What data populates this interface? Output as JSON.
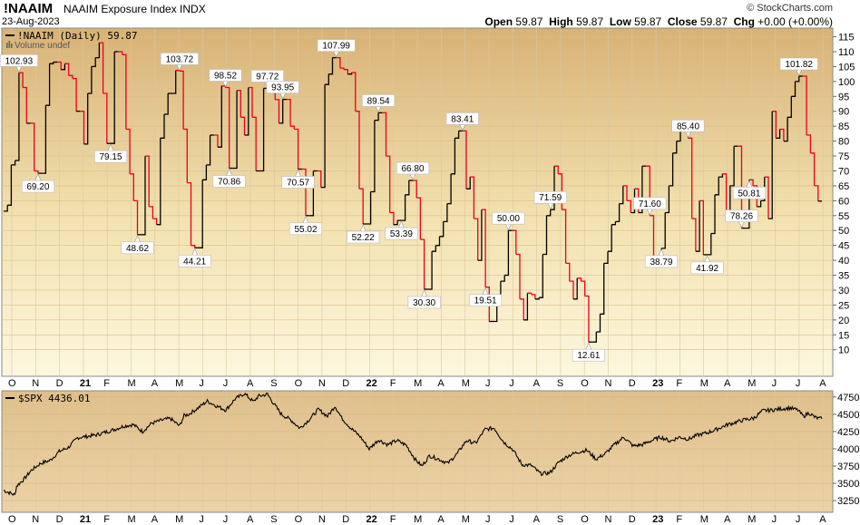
{
  "header": {
    "symbol": "!NAAIM",
    "description": "NAAIM Exposure Index  INDX",
    "date": "23-Aug-2023",
    "copyright": "© StockCharts.com",
    "open_label": "Open",
    "open": "59.87",
    "high_label": "High",
    "high": "59.87",
    "low_label": "Low",
    "low": "59.87",
    "close_label": "Close",
    "close": "59.87",
    "chg_label": "Chg",
    "chg": "+0.00 (+0.00%)"
  },
  "colors": {
    "up": "#000000",
    "down": "#e8001c",
    "bg_top": "#d9b478",
    "bg_bottom": "#fcf6dc"
  },
  "chart_data": [
    {
      "type": "line",
      "legend": "!NAAIM (Daily) 59.87",
      "volume_label": "Volume undef",
      "ylim": [
        2,
        117
      ],
      "yticks": [
        10,
        15,
        20,
        25,
        30,
        35,
        40,
        45,
        50,
        55,
        60,
        65,
        70,
        75,
        80,
        85,
        90,
        95,
        100,
        105,
        110,
        115
      ],
      "x_labels": [
        "O",
        "N",
        "D",
        "21",
        "F",
        "M",
        "A",
        "M",
        "J",
        "J",
        "A",
        "S",
        "O",
        "N",
        "D",
        "22",
        "F",
        "M",
        "A",
        "M",
        "J",
        "J",
        "A",
        "S",
        "O",
        "N",
        "D",
        "23",
        "F",
        "M",
        "A",
        "M",
        "J",
        "J",
        "A"
      ],
      "values": [
        56.5,
        58.5,
        72.0,
        73.5,
        102.9,
        98.0,
        86.0,
        86.0,
        70.0,
        69.2,
        69.2,
        92.0,
        106.0,
        106.5,
        106.5,
        104.0,
        106.0,
        102.0,
        101.0,
        90.0,
        90.0,
        79.0,
        96.0,
        105.0,
        108.0,
        113.0,
        96.0,
        79.2,
        79.2,
        110.0,
        110.0,
        109.0,
        84.0,
        69.0,
        60.0,
        48.6,
        48.6,
        75.0,
        58.0,
        54.0,
        52.0,
        81.0,
        89.0,
        96.0,
        96.0,
        103.7,
        103.5,
        84.0,
        66.0,
        45.0,
        44.2,
        44.2,
        67.0,
        72.0,
        82.0,
        82.0,
        78.0,
        98.5,
        98.0,
        70.9,
        70.9,
        97.0,
        88.0,
        82.0,
        98.0,
        88.0,
        70.0,
        70.0,
        97.7,
        97.7,
        97.0,
        93.9,
        86.0,
        94.0,
        94.0,
        85.0,
        84.0,
        70.6,
        70.6,
        55.0,
        55.0,
        70.0,
        70.0,
        64.5,
        99.0,
        102.5,
        108.0,
        108.0,
        104.5,
        104.0,
        102.5,
        103.0,
        90.0,
        64.0,
        52.2,
        52.2,
        63.0,
        87.0,
        89.5,
        89.5,
        75.0,
        56.0,
        52.0,
        53.4,
        53.4,
        62.0,
        66.8,
        66.8,
        61.0,
        47.0,
        30.3,
        30.3,
        43.0,
        45.0,
        48.0,
        53.0,
        59.0,
        69.0,
        81.0,
        83.4,
        83.4,
        64.0,
        68.0,
        54.0,
        40.0,
        57.0,
        31.0,
        19.5,
        19.5,
        27.0,
        33.0,
        35.0,
        50.0,
        50.0,
        42.0,
        27.0,
        20.0,
        29.0,
        28.5,
        27.0,
        27.5,
        42.0,
        55.0,
        57.0,
        71.6,
        69.0,
        57.0,
        39.0,
        33.0,
        27.0,
        34.0,
        33.0,
        28.0,
        12.6,
        12.6,
        16.0,
        22.0,
        39.0,
        43.0,
        52.0,
        53.0,
        59.0,
        65.0,
        60.0,
        56.0,
        64.0,
        56.0,
        71.6,
        71.6,
        55.0,
        38.8,
        38.8,
        44.0,
        56.0,
        65.0,
        76.0,
        80.0,
        85.4,
        85.4,
        81.0,
        54.0,
        43.0,
        60.0,
        41.9,
        41.9,
        49.0,
        62.0,
        68.0,
        69.0,
        55.0,
        65.0,
        78.3,
        78.3,
        50.8,
        50.8,
        67.0,
        65.0,
        58.0,
        60.0,
        68.0,
        54.0,
        90.0,
        81.0,
        84.0,
        80.0,
        88.0,
        95.0,
        100.0,
        101.8,
        101.8,
        82.0,
        76.0,
        65.0,
        59.87,
        59.87
      ],
      "annotations": [
        {
          "i": 4,
          "label": "102.93",
          "pos": "above"
        },
        {
          "i": 9,
          "label": "69.20",
          "pos": "below"
        },
        {
          "i": 26,
          "label": "",
          "pos": "above"
        },
        {
          "i": 28,
          "label": "79.15",
          "pos": "below"
        },
        {
          "i": 35,
          "label": "48.62",
          "pos": "below"
        },
        {
          "i": 46,
          "label": "103.72",
          "pos": "above"
        },
        {
          "i": 50,
          "label": "44.21",
          "pos": "below"
        },
        {
          "i": 58,
          "label": "98.52",
          "pos": "above"
        },
        {
          "i": 59,
          "label": "70.86",
          "pos": "below"
        },
        {
          "i": 69,
          "label": "97.72",
          "pos": "above"
        },
        {
          "i": 73,
          "label": "93.95",
          "pos": "above"
        },
        {
          "i": 77,
          "label": "70.57",
          "pos": "below"
        },
        {
          "i": 79,
          "label": "55.02",
          "pos": "below"
        },
        {
          "i": 87,
          "label": "107.99",
          "pos": "above"
        },
        {
          "i": 94,
          "label": "52.22",
          "pos": "below"
        },
        {
          "i": 98,
          "label": "89.54",
          "pos": "above"
        },
        {
          "i": 104,
          "label": "53.39",
          "pos": "below"
        },
        {
          "i": 107,
          "label": "66.80",
          "pos": "above"
        },
        {
          "i": 110,
          "label": "30.30",
          "pos": "below"
        },
        {
          "i": 120,
          "label": "83.41",
          "pos": "above"
        },
        {
          "i": 126,
          "label": "19.51",
          "pos": "below"
        },
        {
          "i": 132,
          "label": "50.00",
          "pos": "above"
        },
        {
          "i": 143,
          "label": "71.59",
          "pos": "above"
        },
        {
          "i": 153,
          "label": "12.61",
          "pos": "below"
        },
        {
          "i": 169,
          "label": "71.60",
          "pos": "above"
        },
        {
          "i": 172,
          "label": "38.79",
          "pos": "below"
        },
        {
          "i": 179,
          "label": "85.40",
          "pos": "above"
        },
        {
          "i": 184,
          "label": "41.92",
          "pos": "below"
        },
        {
          "i": 193,
          "label": "78.26",
          "pos": "above"
        },
        {
          "i": 195,
          "label": "50.81",
          "pos": "below"
        },
        {
          "i": 208,
          "label": "101.82",
          "pos": "above"
        }
      ]
    },
    {
      "type": "line",
      "legend": "$SPX 4436.01",
      "ylim": [
        3120,
        4800
      ],
      "yticks": [
        3250,
        3500,
        3750,
        4000,
        4250,
        4500,
        4750
      ],
      "x_labels": [
        "O",
        "N",
        "D",
        "21",
        "F",
        "M",
        "A",
        "M",
        "J",
        "J",
        "A",
        "S",
        "O",
        "N",
        "D",
        "22",
        "F",
        "M",
        "A",
        "M",
        "J",
        "J",
        "A",
        "S",
        "O",
        "N",
        "D",
        "23",
        "F",
        "M",
        "A",
        "M",
        "J",
        "J",
        "A"
      ],
      "anchors": [
        [
          0,
          3400
        ],
        [
          12,
          3330
        ],
        [
          14,
          3460
        ],
        [
          22,
          3560
        ],
        [
          30,
          3690
        ],
        [
          40,
          3790
        ],
        [
          50,
          3830
        ],
        [
          60,
          3960
        ],
        [
          70,
          4020
        ],
        [
          80,
          4160
        ],
        [
          90,
          4180
        ],
        [
          100,
          4200
        ],
        [
          110,
          4240
        ],
        [
          120,
          4280
        ],
        [
          130,
          4330
        ],
        [
          140,
          4350
        ],
        [
          150,
          4250
        ],
        [
          160,
          4370
        ],
        [
          170,
          4410
        ],
        [
          180,
          4440
        ],
        [
          190,
          4330
        ],
        [
          195,
          4480
        ],
        [
          200,
          4500
        ],
        [
          210,
          4590
        ],
        [
          220,
          4690
        ],
        [
          230,
          4620
        ],
        [
          240,
          4560
        ],
        [
          250,
          4720
        ],
        [
          260,
          4800
        ],
        [
          270,
          4680
        ],
        [
          275,
          4760
        ],
        [
          285,
          4790
        ],
        [
          292,
          4650
        ],
        [
          300,
          4500
        ],
        [
          310,
          4420
        ],
        [
          320,
          4300
        ],
        [
          330,
          4420
        ],
        [
          340,
          4570
        ],
        [
          350,
          4470
        ],
        [
          358,
          4620
        ],
        [
          365,
          4450
        ],
        [
          375,
          4300
        ],
        [
          385,
          4180
        ],
        [
          395,
          4000
        ],
        [
          405,
          4130
        ],
        [
          415,
          4060
        ],
        [
          425,
          4120
        ],
        [
          435,
          4050
        ],
        [
          445,
          3840
        ],
        [
          452,
          3750
        ],
        [
          460,
          3900
        ],
        [
          470,
          3850
        ],
        [
          480,
          3790
        ],
        [
          490,
          3930
        ],
        [
          500,
          4120
        ],
        [
          510,
          4080
        ],
        [
          520,
          4280
        ],
        [
          530,
          4300
        ],
        [
          540,
          4100
        ],
        [
          550,
          3990
        ],
        [
          560,
          3770
        ],
        [
          570,
          3760
        ],
        [
          580,
          3640
        ],
        [
          590,
          3650
        ],
        [
          600,
          3810
        ],
        [
          610,
          3900
        ],
        [
          620,
          3950
        ],
        [
          630,
          3980
        ],
        [
          640,
          3850
        ],
        [
          650,
          3930
        ],
        [
          660,
          4060
        ],
        [
          670,
          4170
        ],
        [
          680,
          4040
        ],
        [
          690,
          4060
        ],
        [
          700,
          4120
        ],
        [
          710,
          4170
        ],
        [
          720,
          4110
        ],
        [
          730,
          4170
        ],
        [
          740,
          4140
        ],
        [
          750,
          4200
        ],
        [
          760,
          4230
        ],
        [
          770,
          4280
        ],
        [
          780,
          4340
        ],
        [
          790,
          4380
        ],
        [
          800,
          4420
        ],
        [
          810,
          4440
        ],
        [
          820,
          4550
        ],
        [
          830,
          4560
        ],
        [
          840,
          4580
        ],
        [
          850,
          4590
        ],
        [
          858,
          4560
        ],
        [
          864,
          4470
        ],
        [
          870,
          4520
        ],
        [
          876,
          4460
        ],
        [
          880,
          4440
        ],
        [
          884,
          4436.01
        ]
      ]
    }
  ]
}
